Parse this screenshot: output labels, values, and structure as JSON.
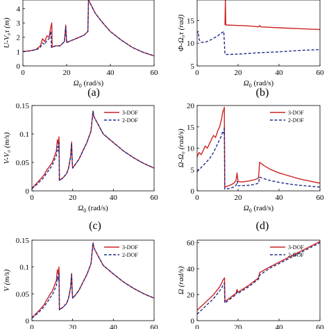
{
  "colors": {
    "three_dof": "#cc2222",
    "two_dof": "#1f2a8a",
    "axis": "#000000"
  },
  "chart_data": [
    {
      "id": "a",
      "type": "line",
      "panel_label": "(a)",
      "xlabel_main": "Ω",
      "xlabel_sub": "0",
      "xlabel_unit": " (rad/s)",
      "ylabel": "U-V₀τ (m)",
      "xlim": [
        0,
        60
      ],
      "ylim": [
        0,
        4.6
      ],
      "xticks": [
        0,
        20,
        40,
        60
      ],
      "yticks": [
        0,
        1,
        2,
        3,
        4
      ],
      "series": [
        {
          "name": "3-DOF",
          "style": "solid",
          "x": [
            0,
            3,
            6,
            8,
            9,
            10,
            11,
            12,
            12.6,
            13.2,
            13.4,
            14,
            15,
            17,
            19,
            19.6,
            20,
            21,
            25,
            28,
            29.7,
            30,
            31,
            33,
            36,
            40,
            45,
            50,
            55,
            60
          ],
          "y": [
            1.0,
            1.05,
            1.15,
            1.4,
            1.9,
            1.7,
            2.1,
            2.0,
            2.6,
            3.0,
            1.3,
            1.35,
            1.4,
            1.4,
            1.7,
            2.85,
            1.65,
            1.7,
            1.95,
            2.15,
            2.4,
            4.6,
            4.3,
            3.7,
            3.1,
            2.4,
            1.8,
            1.3,
            0.95,
            0.7
          ]
        },
        {
          "name": "2-DOF",
          "style": "dashed",
          "x": [
            0,
            3,
            6,
            8,
            9,
            10,
            11,
            12,
            12.4,
            12.8,
            13,
            14,
            15,
            17,
            19,
            19.6,
            20,
            21,
            25,
            28,
            29.7,
            30,
            31,
            33,
            36,
            40,
            45,
            50,
            55,
            60
          ],
          "y": [
            1.0,
            1.05,
            1.12,
            1.3,
            1.6,
            1.5,
            1.8,
            1.9,
            2.2,
            2.4,
            1.3,
            1.35,
            1.4,
            1.4,
            1.7,
            2.75,
            1.6,
            1.7,
            1.95,
            2.15,
            2.4,
            4.6,
            4.3,
            3.7,
            3.1,
            2.4,
            1.8,
            1.3,
            0.95,
            0.7
          ]
        }
      ]
    },
    {
      "id": "b",
      "type": "line",
      "panel_label": "(b)",
      "xlabel_main": "Ω",
      "xlabel_sub": "0",
      "xlabel_unit": " (rad/s)",
      "ylabel": "Φ-Ω₀τ (rad)",
      "xlim": [
        0,
        60
      ],
      "ylim": [
        5,
        19.5
      ],
      "xticks": [
        0,
        20,
        40,
        60
      ],
      "yticks": [
        5,
        10,
        15
      ],
      "series": [
        {
          "name": "3-DOF",
          "style": "solid",
          "x": [
            13.6,
            13.8,
            14,
            20,
            25,
            30,
            30.5,
            31,
            40,
            50,
            60
          ],
          "y": [
            14.0,
            19.5,
            14.0,
            13.9,
            13.8,
            13.6,
            13.9,
            13.6,
            13.4,
            13.2,
            13.0
          ]
        },
        {
          "name": "2-DOF",
          "style": "dashed",
          "x": [
            0,
            0.5,
            1,
            2,
            4,
            7,
            10,
            13,
            13.6,
            14,
            20,
            30,
            40,
            50,
            60
          ],
          "y": [
            12.2,
            12.6,
            10.8,
            10.2,
            10.2,
            10.8,
            11.6,
            12.6,
            7.6,
            7.5,
            7.6,
            7.9,
            8.1,
            8.4,
            8.6
          ]
        }
      ]
    },
    {
      "id": "c",
      "type": "line",
      "panel_label": "(c)",
      "xlabel_main": "Ω",
      "xlabel_sub": "0",
      "xlabel_unit": " (rad/s)",
      "ylabel": "V-V₀ (m/s)",
      "xlim": [
        0,
        60
      ],
      "ylim": [
        0,
        0.15
      ],
      "xticks": [
        0,
        20,
        40,
        60
      ],
      "yticks": [
        0,
        0.05,
        0.1,
        0.15
      ],
      "legend": {
        "position": "top-right",
        "entries": [
          "3-DOF",
          "2-DOF"
        ]
      },
      "series": [
        {
          "name": "3-DOF",
          "style": "solid",
          "x": [
            0,
            2,
            4,
            6,
            7,
            8,
            9,
            10,
            11,
            12,
            12.5,
            13,
            13.3,
            13.5,
            14,
            15,
            16,
            17,
            18,
            19,
            19.5,
            19.8,
            20,
            21,
            23,
            25,
            27,
            29,
            30,
            30.5,
            32,
            35,
            40,
            45,
            50,
            55,
            60
          ],
          "y": [
            0.005,
            0.012,
            0.02,
            0.028,
            0.035,
            0.04,
            0.045,
            0.05,
            0.06,
            0.07,
            0.09,
            0.082,
            0.095,
            0.018,
            0.02,
            0.022,
            0.026,
            0.03,
            0.04,
            0.06,
            0.086,
            0.05,
            0.04,
            0.045,
            0.055,
            0.07,
            0.085,
            0.105,
            0.14,
            0.13,
            0.12,
            0.1,
            0.085,
            0.07,
            0.058,
            0.048,
            0.04
          ]
        },
        {
          "name": "2-DOF",
          "style": "dashed",
          "x": [
            0,
            2,
            4,
            6,
            7,
            8,
            9,
            10,
            11,
            12,
            12.5,
            13,
            13.3,
            13.5,
            14,
            15,
            16,
            17,
            18,
            19,
            19.5,
            19.8,
            20,
            21,
            23,
            25,
            27,
            29,
            30,
            30.5,
            32,
            35,
            40,
            45,
            50,
            55,
            60
          ],
          "y": [
            0.004,
            0.01,
            0.017,
            0.024,
            0.03,
            0.035,
            0.04,
            0.045,
            0.054,
            0.062,
            0.078,
            0.07,
            0.085,
            0.018,
            0.02,
            0.022,
            0.026,
            0.03,
            0.04,
            0.06,
            0.084,
            0.05,
            0.04,
            0.045,
            0.055,
            0.07,
            0.085,
            0.105,
            0.14,
            0.13,
            0.12,
            0.1,
            0.085,
            0.07,
            0.058,
            0.048,
            0.04
          ]
        }
      ]
    },
    {
      "id": "d",
      "type": "line",
      "panel_label": "(d)",
      "xlabel_main": "Ω",
      "xlabel_sub": "0",
      "xlabel_unit": " (rad/s)",
      "ylabel": "Ω-Ω₀ (rad/s)",
      "xlim": [
        0,
        60
      ],
      "ylim": [
        0,
        20
      ],
      "xticks": [
        0,
        20,
        40,
        60
      ],
      "yticks": [
        0,
        5,
        10,
        15,
        20
      ],
      "legend": {
        "position": "top-right",
        "entries": [
          "3-DOF",
          "2-DOF"
        ]
      },
      "series": [
        {
          "name": "3-DOF",
          "style": "solid",
          "x": [
            0,
            1,
            2,
            3,
            4,
            5,
            6,
            7,
            8,
            9,
            10,
            11,
            12,
            12.5,
            13,
            13.3,
            13.5,
            14,
            16,
            18,
            19,
            19.5,
            20,
            22,
            25,
            28,
            30,
            30.5,
            33,
            36,
            40,
            45,
            50,
            55,
            60
          ],
          "y": [
            8.0,
            9.0,
            8.5,
            9.5,
            10.5,
            10.0,
            11.0,
            12.0,
            13.0,
            12.5,
            14.0,
            15.0,
            17.0,
            18.5,
            19.0,
            19.6,
            1.0,
            1.0,
            1.3,
            1.8,
            2.5,
            4.2,
            2.2,
            2.1,
            2.3,
            2.6,
            3.0,
            6.7,
            5.8,
            5.0,
            4.2,
            3.5,
            2.8,
            2.3,
            1.8
          ]
        },
        {
          "name": "2-DOF",
          "style": "dashed",
          "x": [
            0,
            2,
            4,
            6,
            8,
            10,
            11,
            12,
            12.5,
            13,
            13.3,
            13.5,
            14,
            16,
            18,
            19,
            19.5,
            20,
            22,
            25,
            28,
            30,
            30.5,
            33,
            36,
            40,
            45,
            50,
            55,
            60
          ],
          "y": [
            4.5,
            5.5,
            6.5,
            7.5,
            9.0,
            11.0,
            12.0,
            13.0,
            14.0,
            13.5,
            15.0,
            0.4,
            0.4,
            0.6,
            0.9,
            1.3,
            2.2,
            1.2,
            1.2,
            1.3,
            1.5,
            1.8,
            3.2,
            2.8,
            2.4,
            2.0,
            1.6,
            1.3,
            1.1,
            0.9
          ]
        }
      ]
    },
    {
      "id": "e",
      "type": "line",
      "panel_label": "",
      "xlabel_main": "",
      "xlabel_sub": "",
      "xlabel_unit": "",
      "ylabel": "V (m/s)",
      "xlim": [
        0,
        60
      ],
      "ylim": [
        0,
        0.15
      ],
      "xticks": [
        0,
        20,
        40,
        60
      ],
      "yticks": [
        0,
        0.05,
        0.1,
        0.15
      ],
      "legend": {
        "position": "top-right",
        "entries": [
          "3-DOF",
          "2-DOF"
        ]
      },
      "series": [
        {
          "name": "3-DOF",
          "style": "solid",
          "x": [
            0,
            2,
            4,
            6,
            7,
            8,
            9,
            10,
            11,
            12,
            12.5,
            13,
            13.3,
            13.5,
            14,
            15,
            16,
            17,
            18,
            19,
            19.5,
            19.8,
            20,
            21,
            23,
            25,
            27,
            29,
            30,
            30.5,
            32,
            35,
            40,
            45,
            50,
            55,
            60
          ],
          "y": [
            0.006,
            0.013,
            0.021,
            0.03,
            0.037,
            0.043,
            0.05,
            0.055,
            0.065,
            0.075,
            0.095,
            0.087,
            0.1,
            0.02,
            0.022,
            0.024,
            0.028,
            0.032,
            0.042,
            0.062,
            0.088,
            0.052,
            0.042,
            0.046,
            0.056,
            0.071,
            0.086,
            0.106,
            0.145,
            0.135,
            0.124,
            0.103,
            0.087,
            0.072,
            0.06,
            0.05,
            0.042
          ]
        },
        {
          "name": "2-DOF",
          "style": "dashed",
          "x": [
            0,
            2,
            4,
            6,
            7,
            8,
            9,
            10,
            11,
            12,
            12.5,
            13,
            13.3,
            13.5,
            14,
            15,
            16,
            17,
            18,
            19,
            19.5,
            19.8,
            20,
            21,
            23,
            25,
            27,
            29,
            30,
            30.5,
            32,
            35,
            40,
            45,
            50,
            55,
            60
          ],
          "y": [
            0.005,
            0.011,
            0.018,
            0.026,
            0.032,
            0.037,
            0.043,
            0.048,
            0.057,
            0.065,
            0.082,
            0.075,
            0.088,
            0.02,
            0.022,
            0.024,
            0.028,
            0.032,
            0.042,
            0.062,
            0.086,
            0.052,
            0.042,
            0.046,
            0.056,
            0.071,
            0.086,
            0.106,
            0.145,
            0.135,
            0.124,
            0.103,
            0.087,
            0.072,
            0.06,
            0.05,
            0.042
          ]
        }
      ]
    },
    {
      "id": "f",
      "type": "line",
      "panel_label": "",
      "xlabel_main": "",
      "xlabel_sub": "",
      "xlabel_unit": "",
      "ylabel": "Ω (rad/s)",
      "xlim": [
        0,
        60
      ],
      "ylim": [
        0,
        62
      ],
      "xticks": [
        0,
        20,
        40,
        60
      ],
      "yticks": [
        0,
        20,
        40,
        60
      ],
      "legend": {
        "position": "top-right",
        "entries": [
          "3-DOF",
          "2-DOF"
        ]
      },
      "series": [
        {
          "name": "3-DOF",
          "style": "solid",
          "x": [
            0,
            2,
            4,
            6,
            8,
            10,
            11,
            12,
            12.5,
            13,
            13.4,
            13.6,
            14,
            16,
            18,
            19,
            19.5,
            20,
            25,
            30,
            30.5,
            35,
            40,
            45,
            50,
            55,
            60
          ],
          "y": [
            8,
            11,
            14,
            17,
            20,
            24,
            26,
            29,
            31,
            32,
            33,
            15,
            15.2,
            17.5,
            20,
            21,
            24,
            22,
            27,
            33,
            37,
            41,
            45,
            49,
            53,
            57,
            61
          ]
        },
        {
          "name": "2-DOF",
          "style": "dashed",
          "x": [
            0,
            2,
            4,
            6,
            8,
            10,
            11,
            12,
            12.5,
            13,
            13.3,
            13.5,
            14,
            16,
            18,
            19,
            19.5,
            20,
            25,
            30,
            30.5,
            35,
            40,
            45,
            50,
            55,
            60
          ],
          "y": [
            5,
            8,
            11,
            14,
            17,
            21,
            23,
            25,
            27,
            28,
            29,
            13.5,
            14,
            16.5,
            19,
            20,
            22,
            21,
            26,
            32,
            35,
            40,
            44,
            48,
            52,
            56,
            60
          ]
        }
      ]
    }
  ]
}
